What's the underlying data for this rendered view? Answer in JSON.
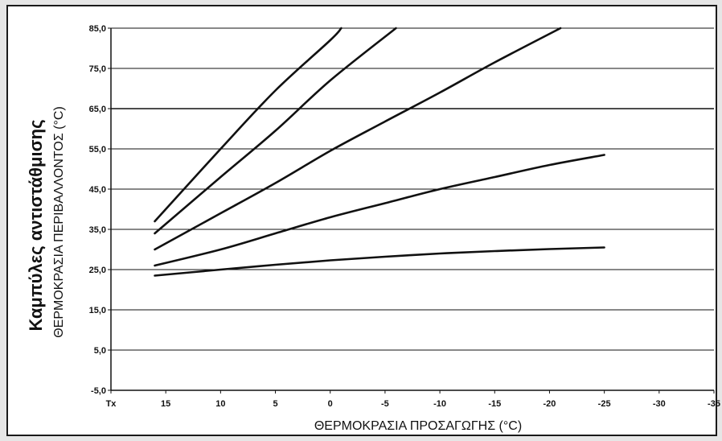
{
  "chart_data": {
    "type": "line",
    "title": "Καμπύλες αντιστάθμισης",
    "xlabel": "ΘΕΡΜΟΚΡΑΣΙΑ ΠΡΟΣΑΓΩΓΗΣ (°C)",
    "ylabel": "ΘΕΡΜΟΚΡΑΣΙΑ ΠΕΡΙΒΑΛΛΟΝΤΟΣ (°C)",
    "x_categories": [
      "Tx",
      "15",
      "10",
      "5",
      "0",
      "-5",
      "-10",
      "-15",
      "-20",
      "-25",
      "-30",
      "-35"
    ],
    "x_values": [
      20,
      15,
      10,
      5,
      0,
      -5,
      -10,
      -15,
      -20,
      -25,
      -30,
      -35
    ],
    "x_direction": "decreasing",
    "ylim": [
      -5,
      85
    ],
    "y_ticks": [
      "-5,0",
      "5,0",
      "15,0",
      "25,0",
      "35,0",
      "45,0",
      "55,0",
      "65,0",
      "75,0",
      "85,0"
    ],
    "y_tick_values": [
      -5,
      5,
      15,
      25,
      35,
      45,
      55,
      65,
      75,
      85
    ],
    "grid": true,
    "series": [
      {
        "points": [
          [
            16,
            37
          ],
          [
            10,
            55
          ],
          [
            5,
            69.5
          ],
          [
            0,
            82
          ],
          [
            -1,
            85
          ]
        ]
      },
      {
        "points": [
          [
            16,
            34
          ],
          [
            10,
            48
          ],
          [
            5,
            59.5
          ],
          [
            0,
            72
          ],
          [
            -6,
            85
          ]
        ]
      },
      {
        "points": [
          [
            16,
            30
          ],
          [
            10,
            39
          ],
          [
            5,
            46.5
          ],
          [
            0,
            54.5
          ],
          [
            -5,
            61.8
          ],
          [
            -10,
            69
          ],
          [
            -15,
            76.5
          ],
          [
            -21,
            85
          ]
        ]
      },
      {
        "points": [
          [
            16,
            26
          ],
          [
            10,
            30
          ],
          [
            5,
            34
          ],
          [
            0,
            38
          ],
          [
            -5,
            41.5
          ],
          [
            -10,
            45
          ],
          [
            -15,
            48
          ],
          [
            -20,
            51
          ],
          [
            -25,
            53.5
          ]
        ]
      },
      {
        "points": [
          [
            16,
            23.5
          ],
          [
            10,
            25
          ],
          [
            5,
            26.2
          ],
          [
            0,
            27.3
          ],
          [
            -5,
            28.2
          ],
          [
            -10,
            29
          ],
          [
            -15,
            29.6
          ],
          [
            -20,
            30.1
          ],
          [
            -25,
            30.5
          ]
        ]
      }
    ]
  }
}
